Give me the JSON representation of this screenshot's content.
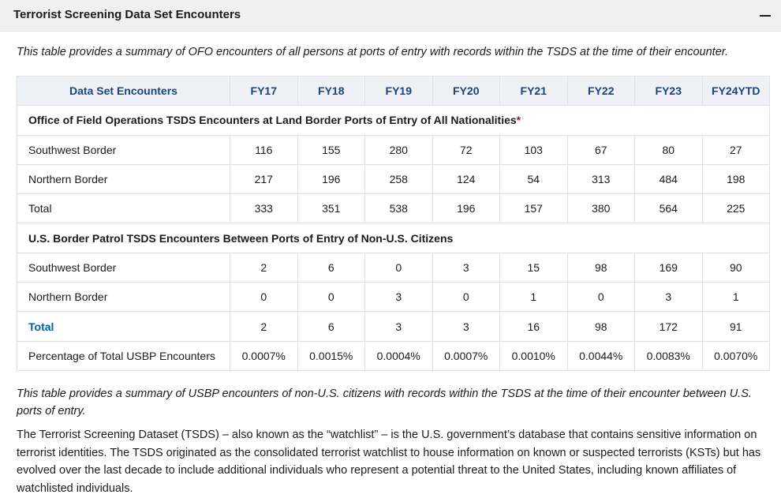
{
  "accordion": {
    "title": "Terrorist Screening Data Set Encounters",
    "collapse_symbol": "minus-icon"
  },
  "intro": "This table provides a summary of OFO encounters of all persons at ports of entry with records within the TSDS at the time of their encounter.",
  "table": {
    "headers": [
      "Data Set Encounters",
      "FY17",
      "FY18",
      "FY19",
      "FY20",
      "FY21",
      "FY22",
      "FY23",
      "FY24YTD"
    ],
    "section1": {
      "title": "Office of Field Operations TSDS Encounters at Land Border Ports of Entry of All Nationalities",
      "marker": "*",
      "rows": [
        {
          "label": "Southwest Border",
          "values": [
            "116",
            "155",
            "280",
            "72",
            "103",
            "67",
            "80",
            "27"
          ]
        },
        {
          "label": "Northern Border",
          "values": [
            "217",
            "196",
            "258",
            "124",
            "54",
            "313",
            "484",
            "198"
          ]
        },
        {
          "label": "Total",
          "values": [
            "333",
            "351",
            "538",
            "196",
            "157",
            "380",
            "564",
            "225"
          ]
        }
      ]
    },
    "section2": {
      "title": "U.S. Border Patrol TSDS Encounters Between Ports of Entry of Non-U.S. Citizens",
      "rows": [
        {
          "label": "Southwest Border",
          "values": [
            "2",
            "6",
            "0",
            "3",
            "15",
            "98",
            "169",
            "90"
          ]
        },
        {
          "label": "Northern Border",
          "values": [
            "0",
            "0",
            "3",
            "0",
            "1",
            "0",
            "3",
            "1"
          ]
        },
        {
          "label": "Total",
          "values": [
            "2",
            "6",
            "3",
            "3",
            "16",
            "98",
            "172",
            "91"
          ]
        },
        {
          "label": "Percentage of Total USBP Encounters",
          "values": [
            "0.0007%",
            "0.0015%",
            "0.0004%",
            "0.0007%",
            "0.0010%",
            "0.0044%",
            "0.0083%",
            "0.0070%"
          ]
        }
      ]
    }
  },
  "note": "This table provides a summary of USBP encounters of non-U.S. citizens with records within the TSDS at the time of their encounter between U.S. ports of entry.",
  "paragraph": "The Terrorist Screening Dataset (TSDS) – also known as the “watchlist” – is the U.S. government’s database that contains sensitive information on terrorist identities. The TSDS originated as the consolidated terrorist watchlist to house information on known or suspected terrorists (KSTs) but has evolved over the last decade to include additional individuals who represent a potential threat to the United States, including known affiliates of watchlisted individuals."
}
